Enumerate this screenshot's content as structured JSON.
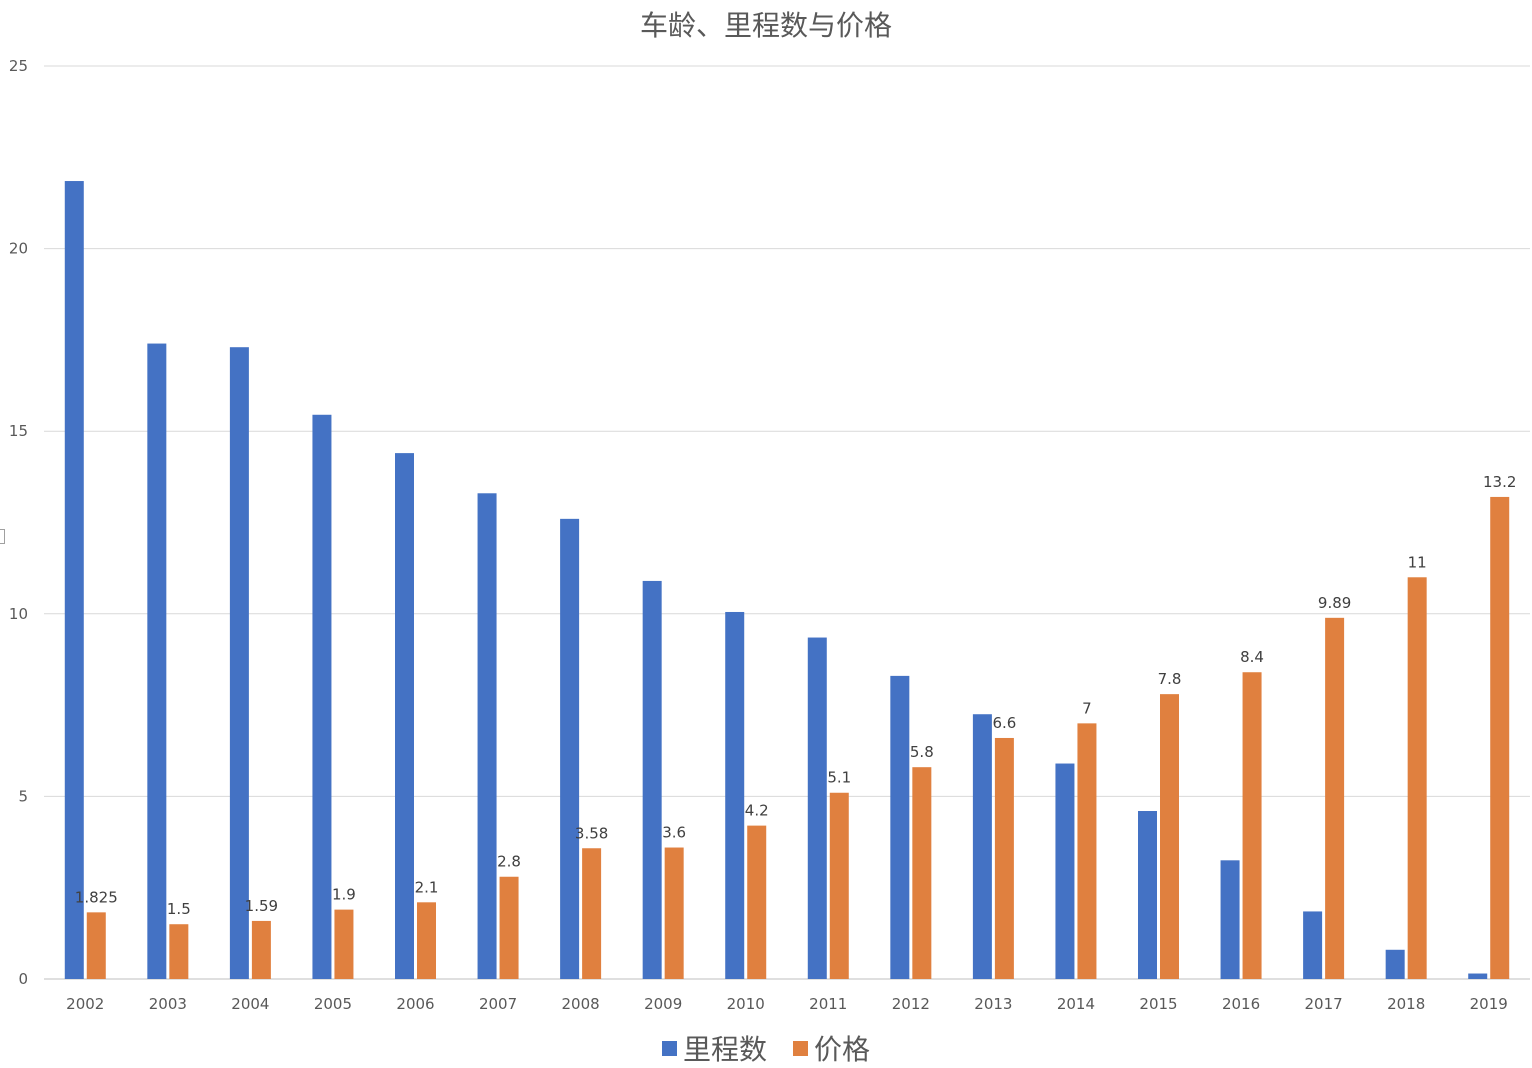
{
  "chart_data": {
    "type": "bar",
    "title": "车龄、里程数与价格",
    "xlabel": "",
    "ylabel": "",
    "ylim": [
      0,
      25
    ],
    "yticks": [
      0,
      5,
      10,
      15,
      20,
      25
    ],
    "grid": true,
    "legend_position": "bottom",
    "categories": [
      "2002",
      "2003",
      "2004",
      "2005",
      "2006",
      "2007",
      "2008",
      "2009",
      "2010",
      "2011",
      "2012",
      "2013",
      "2014",
      "2015",
      "2016",
      "2017",
      "2018",
      "2019"
    ],
    "series": [
      {
        "name": "里程数",
        "color": "#4472C4",
        "values": [
          21.85,
          17.4,
          17.3,
          15.45,
          14.4,
          13.3,
          12.6,
          10.9,
          10.05,
          9.35,
          8.3,
          7.25,
          5.9,
          4.6,
          3.25,
          1.85,
          0.8,
          0.15
        ],
        "show_labels": false
      },
      {
        "name": "价格",
        "color": "#E0803F",
        "values": [
          1.825,
          1.5,
          1.59,
          1.9,
          2.1,
          2.8,
          3.58,
          3.6,
          4.2,
          5.1,
          5.8,
          6.6,
          7,
          7.8,
          8.4,
          9.89,
          11,
          13.2
        ],
        "data_labels": [
          "1.825",
          "1.5",
          "1.59",
          "1.9",
          "2.1",
          "2.8",
          "3.58",
          "3.6",
          "4.2",
          "5.1",
          "5.8",
          "6.6",
          "7",
          "7.8",
          "8.4",
          "9.89",
          "11",
          "13.2"
        ],
        "show_labels": true
      }
    ]
  }
}
